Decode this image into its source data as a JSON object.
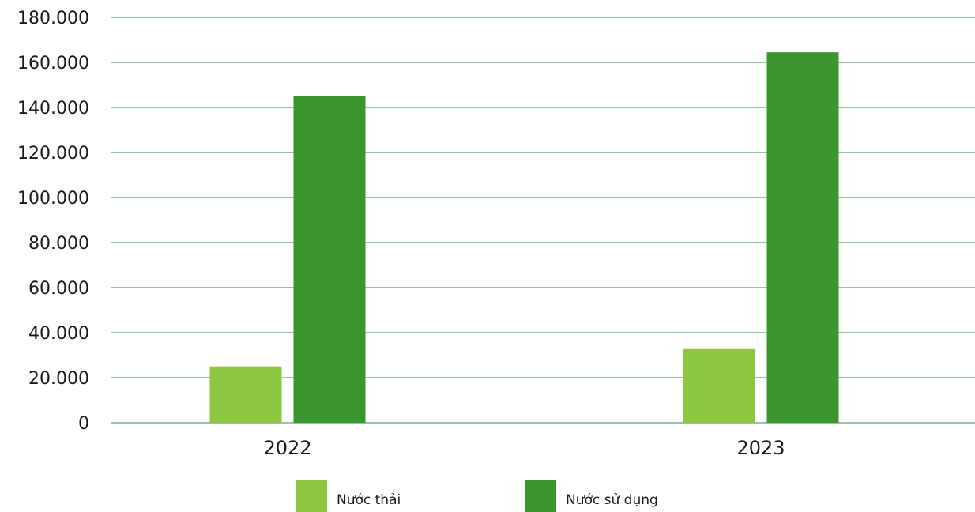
{
  "chart_data": {
    "type": "bar",
    "title": "",
    "xlabel": "",
    "ylabel": "",
    "categories": [
      "2022",
      "2023"
    ],
    "series": [
      {
        "name": "Nước thải",
        "values": [
          25000,
          32700
        ],
        "color": "#8dc63f"
      },
      {
        "name": "Nước sử dụng",
        "values": [
          145000,
          164500
        ],
        "color": "#3b952e"
      }
    ],
    "ylim": [
      0,
      180000
    ],
    "yticks": [
      0,
      20000,
      40000,
      60000,
      80000,
      100000,
      120000,
      140000,
      160000,
      180000
    ],
    "ytick_labels": [
      "0",
      "20.000",
      "40.000",
      "60.000",
      "80.000",
      "100.000",
      "120.000",
      "140.000",
      "160.000",
      "180.000"
    ],
    "grid": true,
    "grid_color": "#2e8b57",
    "legend_position": "bottom"
  }
}
